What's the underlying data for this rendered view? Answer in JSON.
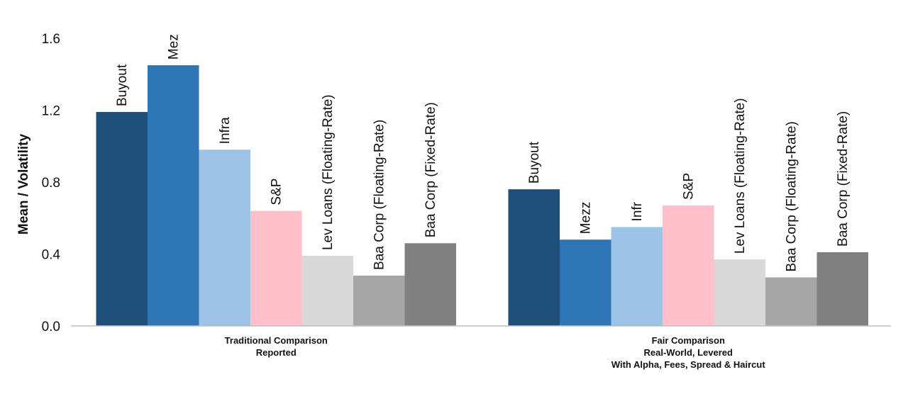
{
  "chart_data": {
    "type": "bar",
    "title": "",
    "xlabel": "",
    "ylabel": "Mean / Volatility",
    "ylim": [
      0,
      1.6
    ],
    "yticks": [
      "0.0",
      "0.4",
      "0.8",
      "1.2",
      "1.6"
    ],
    "grid": false,
    "groups": [
      {
        "label_lines": [
          "Traditional Comparison",
          "Reported"
        ],
        "bars": [
          {
            "label": "Buyout",
            "value": 1.19,
            "color": "#1f4e79"
          },
          {
            "label": "Mez",
            "value": 1.45,
            "color": "#2e75b6"
          },
          {
            "label": "Infra",
            "value": 0.98,
            "color": "#9dc3e6"
          },
          {
            "label": "S&P",
            "value": 0.64,
            "color": "#ffc0cb"
          },
          {
            "label": "Lev Loans (Floating-Rate)",
            "value": 0.39,
            "color": "#d9d9d9"
          },
          {
            "label": "Baa Corp (Floating-Rate)",
            "value": 0.28,
            "color": "#a6a6a6"
          },
          {
            "label": "Baa Corp (Fixed-Rate)",
            "value": 0.46,
            "color": "#808080"
          }
        ]
      },
      {
        "label_lines": [
          "Fair Comparison",
          "Real-World, Levered",
          "With Alpha, Fees, Spread & Haircut"
        ],
        "bars": [
          {
            "label": "Buyout",
            "value": 0.76,
            "color": "#1f4e79"
          },
          {
            "label": "Mezz",
            "value": 0.48,
            "color": "#2e75b6"
          },
          {
            "label": "Infr",
            "value": 0.55,
            "color": "#9dc3e6"
          },
          {
            "label": "S&P",
            "value": 0.67,
            "color": "#ffc0cb"
          },
          {
            "label": "Lev Loans (Floating-Rate)",
            "value": 0.37,
            "color": "#d9d9d9"
          },
          {
            "label": "Baa Corp (Floating-Rate)",
            "value": 0.27,
            "color": "#a6a6a6"
          },
          {
            "label": "Baa Corp (Fixed-Rate)",
            "value": 0.41,
            "color": "#808080"
          }
        ]
      }
    ]
  }
}
